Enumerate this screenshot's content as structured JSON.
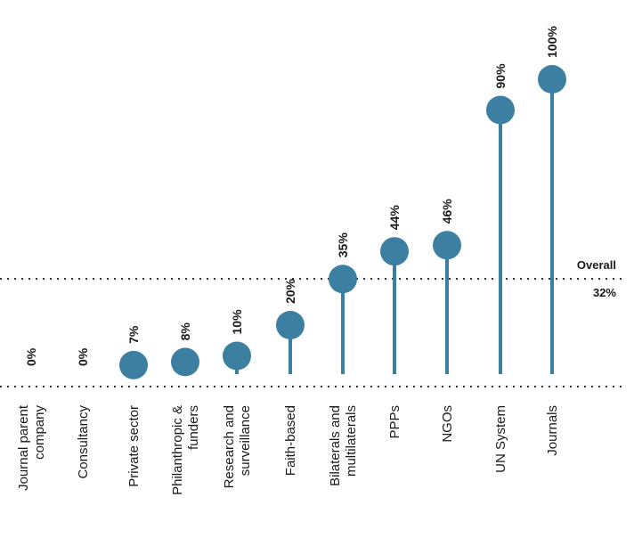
{
  "chart_data": {
    "type": "lollipop",
    "categories": [
      "Journal parent company",
      "Consultancy",
      "Private sector",
      "Philanthropic & funders",
      "Research and surveillance",
      "Faith-based",
      "Bilaterals and multilaterals",
      "PPPs",
      "NGOs",
      "UN System",
      "Journals"
    ],
    "category_lines": [
      [
        "Journal parent",
        "company"
      ],
      [
        "Consultancy"
      ],
      [
        "Private sector"
      ],
      [
        "Philanthropic &",
        "funders"
      ],
      [
        "Research and",
        "surveillance"
      ],
      [
        "Faith-based"
      ],
      [
        "Bilaterals and",
        "multilaterals"
      ],
      [
        "PPPs"
      ],
      [
        "NGOs"
      ],
      [
        "UN System"
      ],
      [
        "Journals"
      ]
    ],
    "values": [
      0,
      0,
      7,
      8,
      10,
      20,
      35,
      44,
      46,
      90,
      100
    ],
    "value_labels": [
      "0%",
      "0%",
      "7%",
      "8%",
      "10%",
      "20%",
      "35%",
      "44%",
      "46%",
      "90%",
      "100%"
    ],
    "ylim": [
      0,
      100
    ],
    "reference_line": {
      "value": 32,
      "label_line1": "Overall",
      "label_line2": "32%"
    },
    "colors": {
      "marker": "#3d7fa0",
      "text": "#1a1a1a",
      "reference": "#333333"
    }
  }
}
